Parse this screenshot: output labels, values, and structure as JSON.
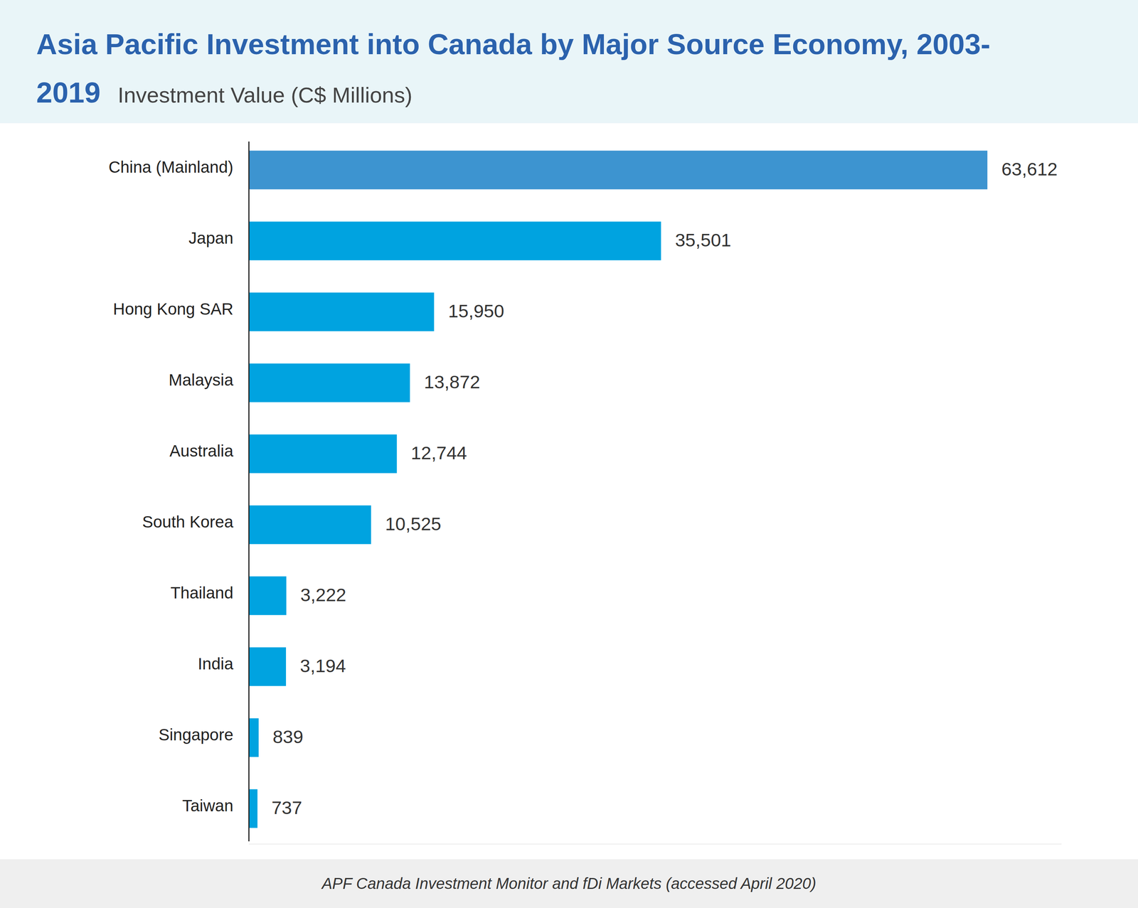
{
  "chart_data": {
    "type": "bar",
    "orientation": "horizontal",
    "title": "Asia Pacific Investment into Canada by Major Source Economy, 2003-2019",
    "subtitle": "Investment Value (C$ Millions)",
    "source": "APF Canada Investment Monitor and fDi Markets (accessed April 2020)",
    "categories": [
      "China (Mainland)",
      "Japan",
      "Hong Kong SAR",
      "Malaysia",
      "Australia",
      "South Korea",
      "Thailand",
      "India",
      "Singapore",
      "Taiwan"
    ],
    "values": [
      63612,
      35501,
      15950,
      13872,
      12744,
      10525,
      3222,
      3194,
      839,
      737
    ],
    "value_labels": [
      "63,612",
      "35,501",
      "15,950",
      "13,872",
      "12,744",
      "10,525",
      "3,222",
      "3,194",
      "839",
      "737"
    ],
    "colors": [
      "#3d94d0",
      "#00a3e0",
      "#00a3e0",
      "#00a3e0",
      "#00a3e0",
      "#00a3e0",
      "#00a3e0",
      "#00a3e0",
      "#00a3e0",
      "#00a3e0"
    ],
    "xlim": [
      0,
      70000
    ],
    "data_labels": true,
    "tick_labels": "y",
    "grid": false
  }
}
